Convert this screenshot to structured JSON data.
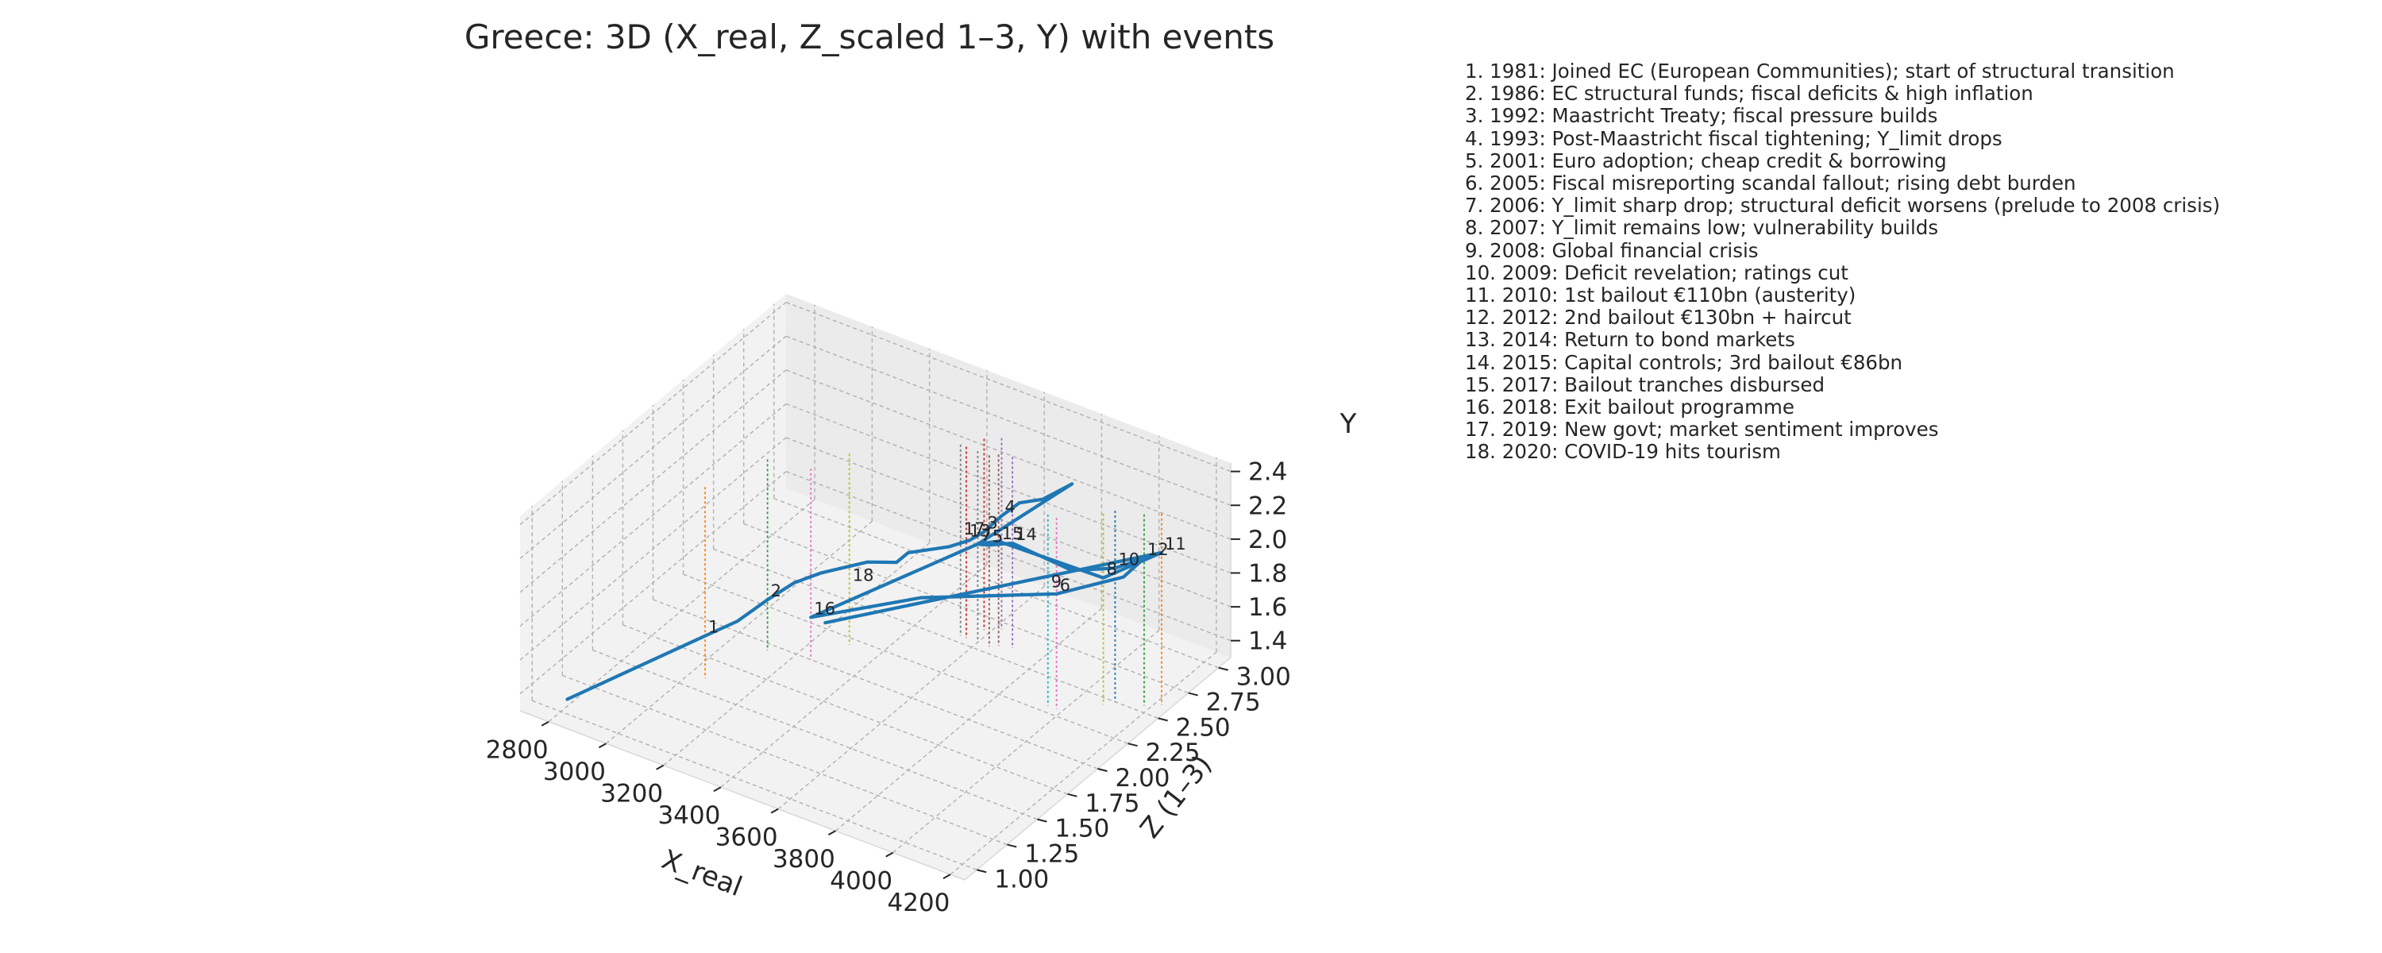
{
  "chart_data": {
    "type": "line3d",
    "title": "Greece: 3D (X_real, Z_scaled 1–3, Y) with events",
    "axes": {
      "x": {
        "label": "X_real",
        "range": [
          2700,
          4250
        ],
        "ticks": [
          2800,
          3000,
          3200,
          3400,
          3600,
          3800,
          4000,
          4200
        ]
      },
      "z": {
        "label": "Z (1–3)",
        "range": [
          0.9,
          3.1
        ],
        "ticks": [
          "1.00",
          "1.25",
          "1.50",
          "1.75",
          "2.00",
          "2.25",
          "2.50",
          "2.75",
          "3.00"
        ]
      },
      "y": {
        "label": "Y",
        "range": [
          1.3,
          2.45
        ],
        "ticks": [
          "1.4",
          "1.6",
          "1.8",
          "2.0",
          "2.2",
          "2.4"
        ]
      }
    },
    "grid": true,
    "line_color": "#1f77b4",
    "series": [
      {
        "values": [
          {
            "x": 2780,
            "z": 1.1,
            "y": 1.3
          },
          {
            "x": 3050,
            "z": 1.6,
            "y": 1.55
          },
          {
            "x": 3100,
            "z": 1.75,
            "y": 1.58
          },
          {
            "x": 3120,
            "z": 1.95,
            "y": 1.6
          },
          {
            "x": 3150,
            "z": 2.1,
            "y": 1.63
          },
          {
            "x": 3200,
            "z": 2.2,
            "y": 1.66
          },
          {
            "x": 3300,
            "z": 2.35,
            "y": 1.7
          },
          {
            "x": 3380,
            "z": 2.4,
            "y": 1.72
          },
          {
            "x": 3400,
            "z": 2.45,
            "y": 1.76
          },
          {
            "x": 3500,
            "z": 2.55,
            "y": 1.8
          },
          {
            "x": 3550,
            "z": 2.6,
            "y": 1.84
          },
          {
            "x": 3580,
            "z": 2.65,
            "y": 1.88
          },
          {
            "x": 3620,
            "z": 2.7,
            "y": 1.97
          },
          {
            "x": 3640,
            "z": 2.8,
            "y": 2.0
          },
          {
            "x": 3700,
            "z": 2.85,
            "y": 2.03
          },
          {
            "x": 3760,
            "z": 2.95,
            "y": 2.1
          },
          {
            "x": 3600,
            "z": 2.55,
            "y": 1.88
          },
          {
            "x": 3640,
            "z": 2.55,
            "y": 1.9
          },
          {
            "x": 3700,
            "z": 2.6,
            "y": 1.92
          },
          {
            "x": 3950,
            "z": 2.5,
            "y": 1.98
          },
          {
            "x": 4100,
            "z": 2.5,
            "y": 2.09
          },
          {
            "x": 4180,
            "z": 2.55,
            "y": 2.17
          },
          {
            "x": 4150,
            "z": 2.45,
            "y": 2.1
          },
          {
            "x": 3980,
            "z": 2.3,
            "y": 1.98
          },
          {
            "x": 3550,
            "z": 2.2,
            "y": 1.74
          },
          {
            "x": 3250,
            "z": 2.0,
            "y": 1.55
          },
          {
            "x": 3600,
            "z": 2.55,
            "y": 1.88
          },
          {
            "x": 3650,
            "z": 2.6,
            "y": 1.9
          },
          {
            "x": 4080,
            "z": 2.45,
            "y": 2.05
          },
          {
            "x": 4220,
            "z": 2.6,
            "y": 2.2
          },
          {
            "x": 3300,
            "z": 2.0,
            "y": 1.55
          }
        ]
      }
    ],
    "events": [
      {
        "n": "1",
        "text": "1. 1981: Joined EC (European Communities); start of structural transition",
        "x": 3050,
        "z": 1.6,
        "y": 1.55,
        "color": "#ff7f0e"
      },
      {
        "n": "2",
        "text": "2. 1986: EC structural funds; fiscal deficits & high inflation",
        "x": 3120,
        "z": 1.95,
        "y": 1.6,
        "color": "#2ca02c"
      },
      {
        "n": "3",
        "text": "3. 1992: Maastricht Treaty; fiscal pressure builds",
        "x": 3580,
        "z": 2.65,
        "y": 1.88,
        "color": "#d62728"
      },
      {
        "n": "4",
        "text": "4. 1993: Post-Maastricht fiscal tightening; Y_limit drops",
        "x": 3620,
        "z": 2.7,
        "y": 1.97,
        "color": "#9467bd"
      },
      {
        "n": "5",
        "text": "5. 2001: Euro adoption; cheap credit & borrowing",
        "x": 3640,
        "z": 2.55,
        "y": 1.9,
        "color": "#8c564b"
      },
      {
        "n": "6",
        "text": "6. 2005: Fiscal misreporting scandal fallout; rising debt burden",
        "x": 3980,
        "z": 2.3,
        "y": 1.98,
        "color": "#e377c2"
      },
      {
        "n": "7",
        "text": "7. 2006: Y_limit sharp drop; structural deficit worsens (prelude to 2008 crisis)",
        "x": 3600,
        "z": 2.55,
        "y": 1.88,
        "color": "#7f7f7f"
      },
      {
        "n": "8",
        "text": "8. 2007: Y_limit remains low; vulnerability builds",
        "x": 4080,
        "z": 2.45,
        "y": 2.05,
        "color": "#bcbd22"
      },
      {
        "n": "9",
        "text": "9. 2008: Global financial crisis",
        "x": 3950,
        "z": 2.3,
        "y": 1.98,
        "color": "#17becf"
      },
      {
        "n": "10",
        "text": "10. 2009: Deficit revelation; ratings cut",
        "x": 4100,
        "z": 2.5,
        "y": 2.09,
        "color": "#1f77b4"
      },
      {
        "n": "11",
        "text": "11. 2010: 1st bailout €110bn (austerity)",
        "x": 4220,
        "z": 2.6,
        "y": 2.2,
        "color": "#ff7f0e"
      },
      {
        "n": "12",
        "text": "12. 2012: 2nd bailout €130bn + haircut",
        "x": 4180,
        "z": 2.55,
        "y": 2.17,
        "color": "#2ca02c"
      },
      {
        "n": "13",
        "text": "13. 2014: Return to bond markets",
        "x": 3560,
        "z": 2.55,
        "y": 1.88,
        "color": "#d62728"
      },
      {
        "n": "14",
        "text": "14. 2015: Capital controls; 3rd bailout €86bn",
        "x": 3700,
        "z": 2.6,
        "y": 1.92,
        "color": "#9467bd"
      },
      {
        "n": "15",
        "text": "15. 2017: Bailout tranches disbursed",
        "x": 3660,
        "z": 2.58,
        "y": 1.91,
        "color": "#8c564b"
      },
      {
        "n": "16",
        "text": "16. 2018: Exit bailout programme",
        "x": 3250,
        "z": 2.0,
        "y": 1.55,
        "color": "#e377c2"
      },
      {
        "n": "17",
        "text": "17. 2019: New govt; market sentiment improves",
        "x": 3540,
        "z": 2.55,
        "y": 1.88,
        "color": "#7f7f7f"
      },
      {
        "n": "18",
        "text": "18. 2020: COVID-19 hits tourism",
        "x": 3300,
        "z": 2.2,
        "y": 1.66,
        "color": "#bcbd22"
      }
    ]
  }
}
